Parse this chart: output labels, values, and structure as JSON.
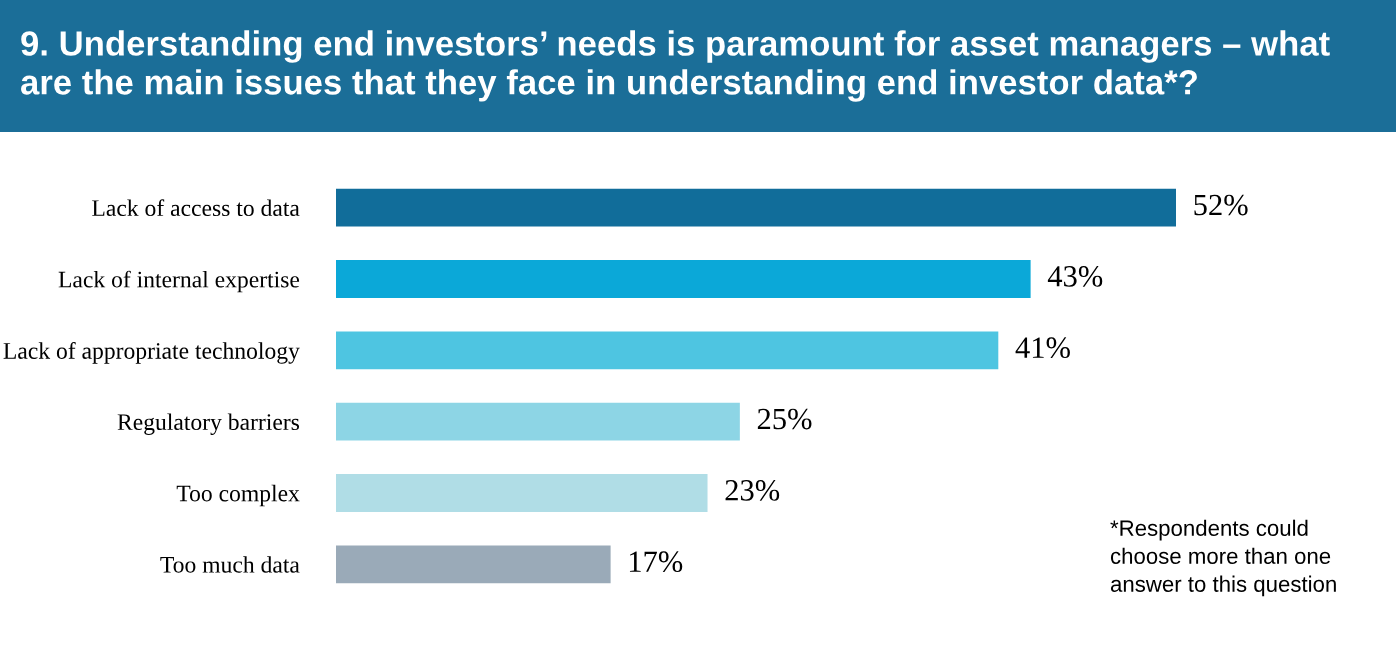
{
  "chart_data": {
    "type": "bar",
    "orientation": "horizontal",
    "title": "9. Understanding end investors’ needs is paramount for asset managers – what\nare the main issues that they face in understanding end investor data*?",
    "categories": [
      "Lack of access to data",
      "Lack of internal expertise",
      "Lack of appropriate technology",
      "Regulatory barriers",
      "Too complex",
      "Too much data"
    ],
    "values": [
      52,
      43,
      41,
      25,
      23,
      17
    ],
    "value_labels": [
      "52%",
      "43%",
      "41%",
      "25%",
      "23%",
      "17%"
    ],
    "colors": [
      "#116d9a",
      "#0ba8d8",
      "#4ec5e1",
      "#8dd5e5",
      "#b0dde6",
      "#9aaab8"
    ],
    "tick_labels": "y",
    "grid": false,
    "legend": false,
    "annotations": [
      "*Respondents could\nchoose more than one\nanswer to this question"
    ]
  }
}
